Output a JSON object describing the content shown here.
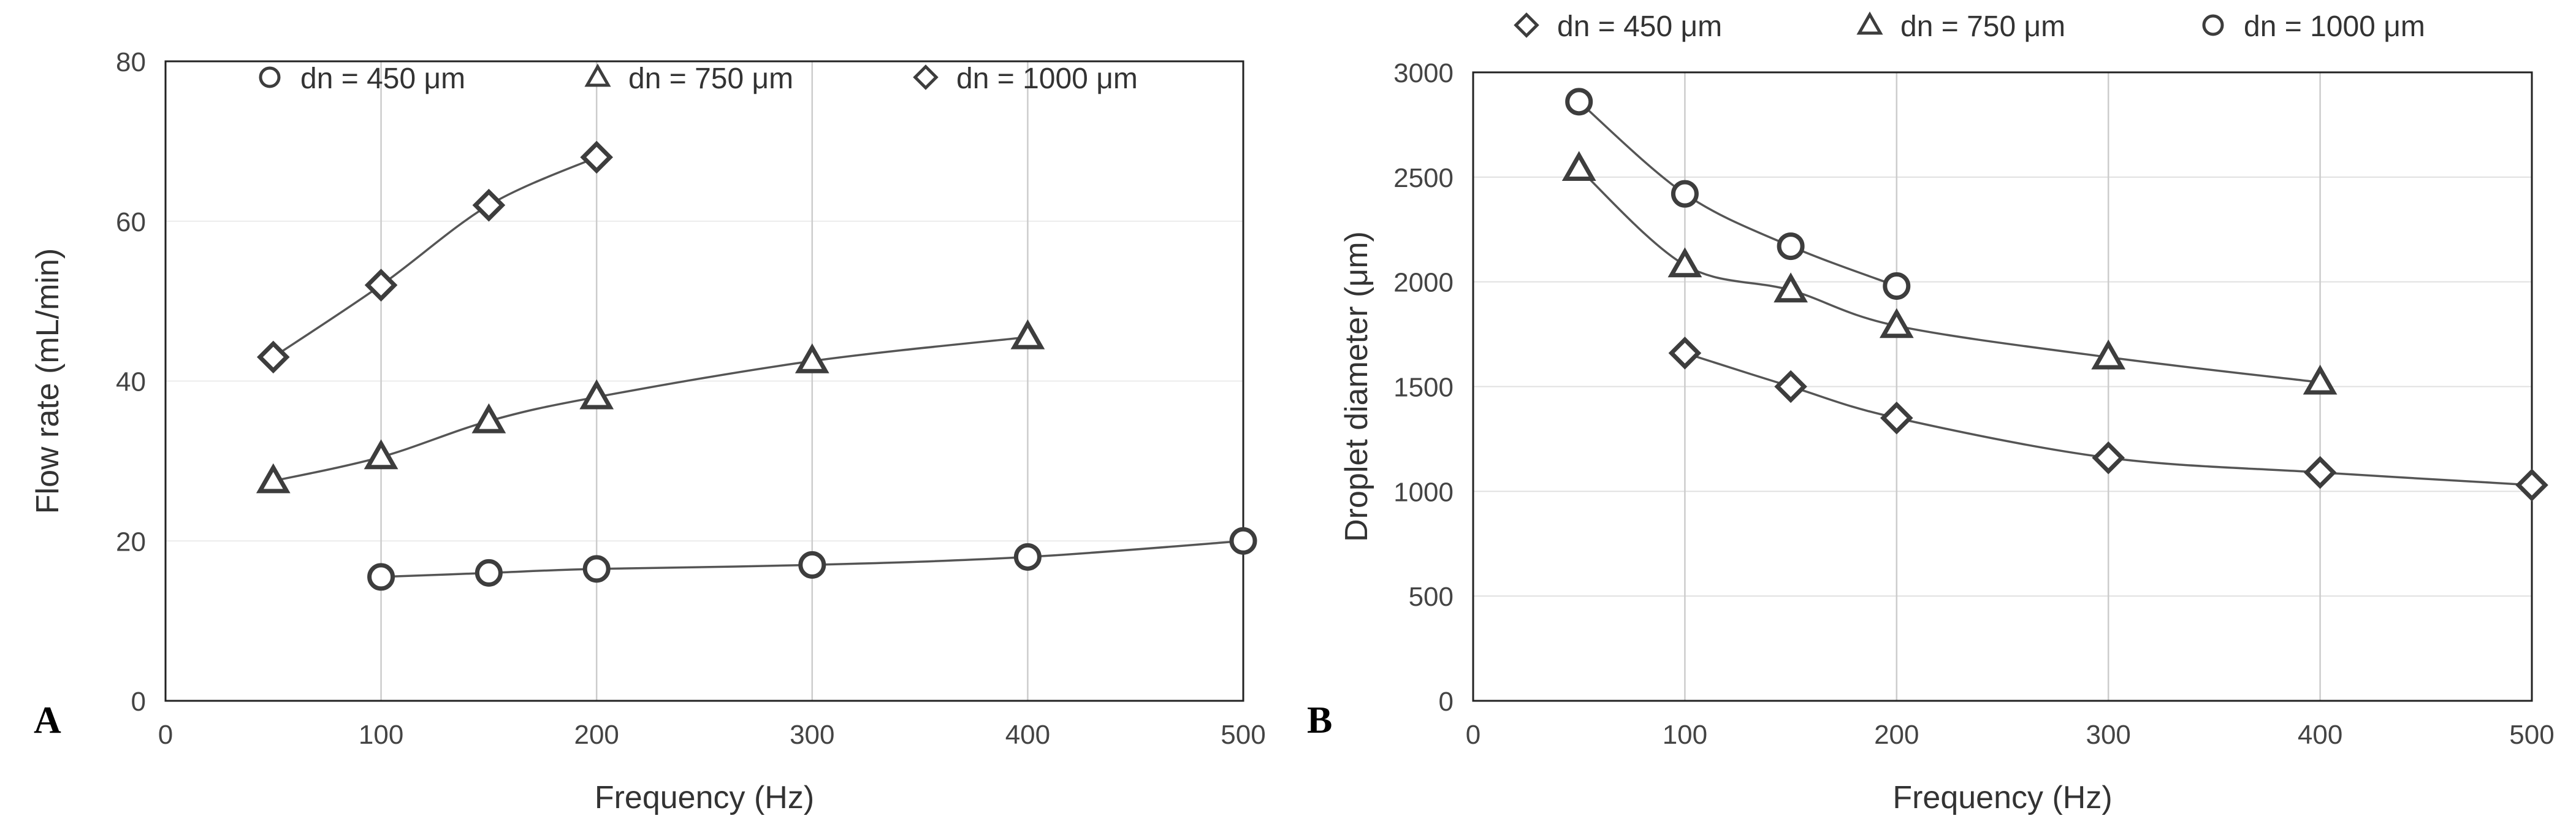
{
  "chart_data": [
    {
      "panel": "A",
      "type": "line",
      "title": "",
      "xlabel": "Frequency (Hz)",
      "ylabel": "Flow rate (mL/min)",
      "xlim": [
        0,
        500
      ],
      "ylim": [
        0,
        80
      ],
      "xticks": [
        0,
        100,
        200,
        300,
        400,
        500
      ],
      "yticks": [
        0,
        20,
        40,
        60,
        80
      ],
      "grid": "vertical",
      "legend_position": "top",
      "series": [
        {
          "name": "dn = 450 μm",
          "marker": "circle",
          "x": [
            100,
            150,
            200,
            300,
            400,
            500
          ],
          "y": [
            15.5,
            16,
            16.5,
            17,
            18,
            20
          ]
        },
        {
          "name": "dn = 750 μm",
          "marker": "triangle",
          "x": [
            50,
            100,
            150,
            200,
            300,
            400
          ],
          "y": [
            27.5,
            30.5,
            35,
            38,
            42.5,
            45.5
          ]
        },
        {
          "name": "dn = 1000 μm",
          "marker": "diamond",
          "x": [
            50,
            100,
            150,
            200
          ],
          "y": [
            43,
            52,
            62,
            68
          ]
        }
      ]
    },
    {
      "panel": "B",
      "type": "line",
      "title": "",
      "xlabel": "Frequency (Hz)",
      "ylabel": "Droplet diameter (μm)",
      "xlim": [
        0,
        500
      ],
      "ylim": [
        0,
        3000
      ],
      "xticks": [
        0,
        100,
        200,
        300,
        400,
        500
      ],
      "yticks": [
        0,
        500,
        1000,
        1500,
        2000,
        2500,
        3000
      ],
      "grid": "both",
      "legend_position": "top",
      "series": [
        {
          "name": "dn = 450 μm",
          "marker": "diamond",
          "x": [
            100,
            150,
            200,
            300,
            400,
            500
          ],
          "y": [
            1660,
            1500,
            1350,
            1160,
            1090,
            1030
          ]
        },
        {
          "name": "dn = 750 μm",
          "marker": "triangle",
          "x": [
            50,
            100,
            150,
            200,
            300,
            400
          ],
          "y": [
            2540,
            2080,
            1960,
            1790,
            1640,
            1520
          ]
        },
        {
          "name": "dn = 1000 μm",
          "marker": "circle",
          "x": [
            50,
            100,
            150,
            200
          ],
          "y": [
            2860,
            2420,
            2170,
            1980
          ]
        }
      ]
    }
  ],
  "colors": {
    "line": "#555555",
    "marker": "#3d3d3d",
    "grid": "#cccccc",
    "hgrid": "#e0e0e0",
    "frame": "#222222"
  }
}
